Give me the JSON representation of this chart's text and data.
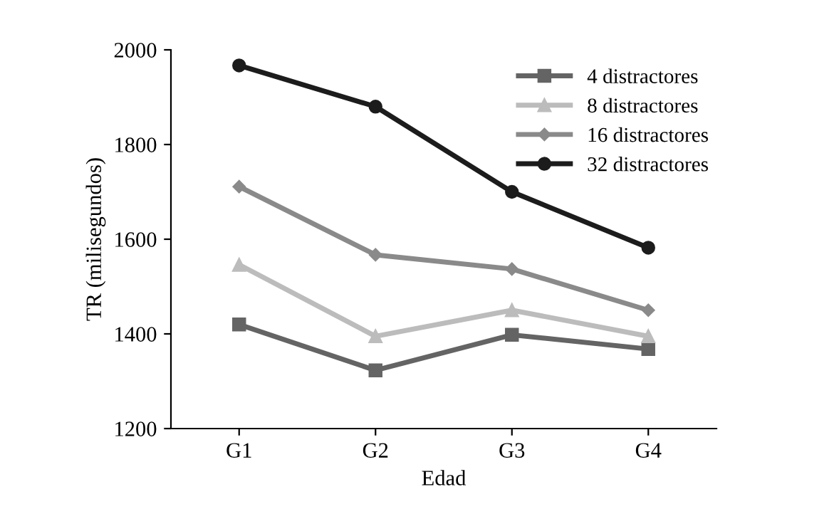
{
  "chart_data": {
    "type": "line",
    "xlabel": "Edad",
    "ylabel": "TR (milisegundos)",
    "categories": [
      "G1",
      "G2",
      "G3",
      "G4"
    ],
    "series": [
      {
        "name": "4 distractores",
        "color": "#646464",
        "marker": "square",
        "values": [
          1420,
          1323,
          1398,
          1368
        ]
      },
      {
        "name": "8 distractores",
        "color": "#bcbcbc",
        "marker": "triangle",
        "values": [
          1546,
          1395,
          1450,
          1395
        ]
      },
      {
        "name": "16 distractores",
        "color": "#8a8a8a",
        "marker": "diamond",
        "values": [
          1711,
          1567,
          1537,
          1450
        ]
      },
      {
        "name": "32 distractores",
        "color": "#1c1c1c",
        "marker": "circle",
        "values": [
          1967,
          1880,
          1700,
          1582
        ]
      }
    ],
    "ylim": [
      1200,
      2000
    ],
    "yticks": [
      1200,
      1400,
      1600,
      1800,
      2000
    ],
    "grid": false,
    "legend": "top right",
    "line_style": "solid"
  }
}
